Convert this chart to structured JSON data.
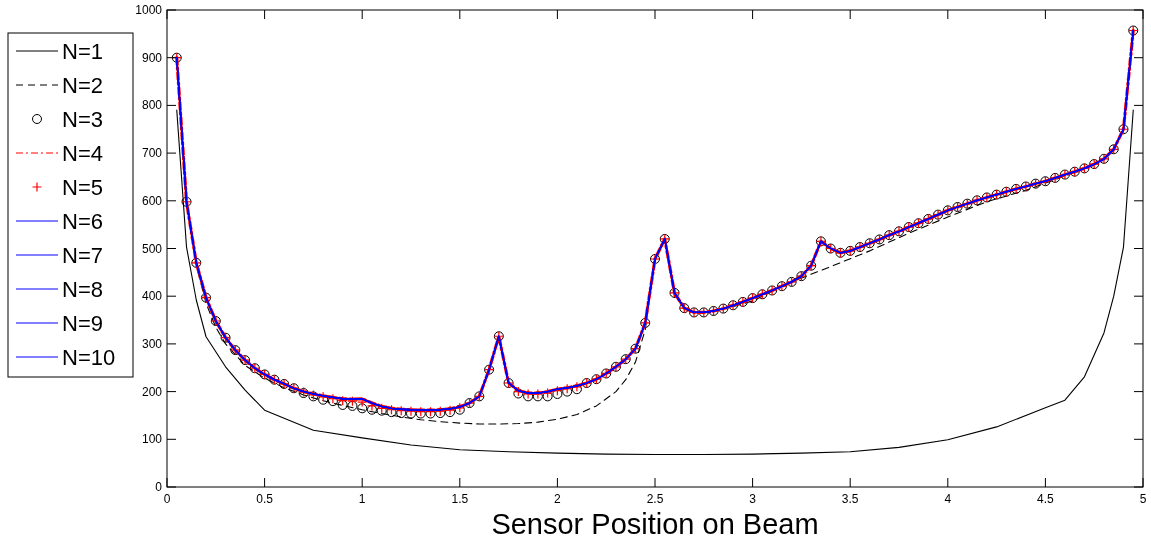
{
  "chart_data": {
    "type": "line",
    "xlabel": "Sensor Position on Beam",
    "xlim": [
      0,
      5
    ],
    "xticks": [
      0,
      0.5,
      1,
      1.5,
      2,
      2.5,
      3,
      3.5,
      4,
      4.5,
      5
    ],
    "ylim": [
      0,
      1000
    ],
    "yticks": [
      0,
      100,
      200,
      300,
      400,
      500,
      600,
      700,
      800,
      900,
      1000
    ],
    "grid": false,
    "legend": "left",
    "x": [
      0.05,
      0.1,
      0.15,
      0.2,
      0.25,
      0.3,
      0.35,
      0.4,
      0.45,
      0.5,
      0.55,
      0.6,
      0.65,
      0.7,
      0.75,
      0.8,
      0.85,
      0.9,
      0.95,
      1,
      1.05,
      1.1,
      1.15,
      1.2,
      1.25,
      1.3,
      1.35,
      1.4,
      1.45,
      1.5,
      1.55,
      1.6,
      1.65,
      1.7,
      1.75,
      1.8,
      1.85,
      1.9,
      1.95,
      2,
      2.05,
      2.1,
      2.15,
      2.2,
      2.25,
      2.3,
      2.35,
      2.4,
      2.45,
      2.5,
      2.55,
      2.6,
      2.65,
      2.7,
      2.75,
      2.8,
      2.85,
      2.9,
      2.95,
      3,
      3.05,
      3.1,
      3.15,
      3.2,
      3.25,
      3.3,
      3.35,
      3.4,
      3.45,
      3.5,
      3.55,
      3.6,
      3.65,
      3.7,
      3.75,
      3.8,
      3.85,
      3.9,
      3.95,
      4,
      4.05,
      4.1,
      4.15,
      4.2,
      4.25,
      4.3,
      4.35,
      4.4,
      4.45,
      4.5,
      4.55,
      4.6,
      4.65,
      4.7,
      4.75,
      4.8,
      4.85,
      4.9,
      4.95
    ],
    "series": [
      {
        "name": "N=1",
        "color": "#000000",
        "line_style": "solid",
        "marker": "none",
        "x": [
          0.05,
          0.1,
          0.15,
          0.2,
          0.3,
          0.4,
          0.5,
          0.75,
          1,
          1.25,
          1.5,
          1.75,
          2,
          2.25,
          2.5,
          2.75,
          3,
          3.25,
          3.5,
          3.75,
          4,
          4.25,
          4.5,
          4.6,
          4.7,
          4.8,
          4.85,
          4.9,
          4.95
        ],
        "values": [
          790,
          503,
          392,
          315,
          252,
          203,
          161,
          119,
          103,
          88,
          78,
          74,
          71,
          69,
          68,
          68,
          69,
          71,
          74,
          83,
          99,
          126,
          166,
          182,
          231,
          323,
          400,
          503,
          790
        ]
      },
      {
        "name": "N=2",
        "color": "#000000",
        "line_style": "dashed",
        "marker": "none",
        "x": [
          0.05,
          0.1,
          0.15,
          0.2,
          0.25,
          0.3,
          0.4,
          0.5,
          0.6,
          0.7,
          0.8,
          0.9,
          1,
          1.1,
          1.2,
          1.3,
          1.4,
          1.5,
          1.6,
          1.7,
          1.8,
          1.9,
          2,
          2.1,
          2.2,
          2.3,
          2.35,
          2.4,
          2.45,
          2.5,
          2.55,
          2.6,
          2.7,
          2.8,
          2.9,
          3,
          3.2,
          3.4,
          3.6,
          3.8,
          4,
          4.2,
          4.4,
          4.6,
          4.7,
          4.8,
          4.85,
          4.9,
          4.95
        ],
        "values": [
          900,
          598,
          465,
          385,
          335,
          300,
          255,
          228,
          208,
          193,
          181,
          171,
          162,
          154,
          147,
          141,
          137,
          134,
          132,
          132,
          133,
          136,
          142,
          152,
          170,
          200,
          225,
          262,
          330,
          478,
          518,
          398,
          365,
          368,
          378,
          390,
          430,
          462,
          495,
          532,
          566,
          598,
          622,
          652,
          668,
          688,
          706,
          750,
          957
        ]
      },
      {
        "name": "N=3",
        "type": "scatter",
        "color": "#000000",
        "marker": "circle",
        "values": [
          900,
          598,
          470,
          397,
          348,
          313,
          287,
          266,
          249,
          236,
          225,
          216,
          207,
          197,
          190,
          183,
          180,
          172,
          170,
          165,
          162,
          160,
          157,
          155,
          154,
          154,
          154,
          155,
          157,
          162,
          176,
          190,
          246,
          316,
          218,
          196,
          190,
          190,
          190,
          195,
          200,
          205,
          218,
          226,
          238,
          252,
          268,
          290,
          344,
          478,
          520,
          407,
          375,
          366,
          366,
          369,
          374,
          381,
          388,
          396,
          404,
          412,
          421,
          430,
          442,
          464,
          515,
          500,
          491,
          495,
          503,
          511,
          519,
          528,
          536,
          545,
          553,
          562,
          571,
          580,
          587,
          594,
          601,
          607,
          613,
          619,
          625,
          630,
          636,
          641,
          648,
          655,
          661,
          668,
          677,
          688,
          708,
          750,
          957
        ]
      },
      {
        "name": "N=4",
        "color": "#ff0000",
        "line_style": "dashdot",
        "marker": "none",
        "values": [
          900,
          598,
          470,
          397,
          348,
          313,
          287,
          266,
          249,
          236,
          225,
          216,
          207,
          200,
          195,
          191,
          188,
          185,
          184,
          185,
          176,
          169,
          165,
          163,
          162,
          161,
          161,
          162,
          164,
          168,
          176,
          190,
          246,
          316,
          218,
          202,
          197,
          197,
          200,
          205,
          208,
          212,
          218,
          226,
          238,
          252,
          268,
          290,
          344,
          478,
          520,
          407,
          375,
          366,
          366,
          369,
          374,
          381,
          388,
          396,
          404,
          412,
          421,
          430,
          442,
          464,
          515,
          500,
          491,
          495,
          503,
          511,
          519,
          528,
          536,
          545,
          553,
          562,
          571,
          580,
          587,
          594,
          601,
          607,
          613,
          619,
          625,
          630,
          636,
          641,
          648,
          655,
          661,
          668,
          677,
          688,
          708,
          750,
          957
        ]
      },
      {
        "name": "N=5",
        "type": "scatter",
        "color": "#ff0000",
        "marker": "cross",
        "values": [
          900,
          598,
          470,
          397,
          348,
          313,
          287,
          266,
          249,
          236,
          225,
          216,
          207,
          199,
          193,
          189,
          185,
          181,
          180,
          178,
          170,
          165,
          162,
          160,
          159,
          158,
          158,
          159,
          161,
          166,
          176,
          190,
          246,
          316,
          218,
          200,
          195,
          195,
          197,
          202,
          206,
          210,
          218,
          226,
          238,
          252,
          268,
          290,
          344,
          478,
          520,
          407,
          375,
          366,
          366,
          369,
          374,
          381,
          388,
          396,
          404,
          412,
          421,
          430,
          442,
          464,
          515,
          500,
          491,
          495,
          503,
          511,
          519,
          528,
          536,
          545,
          553,
          562,
          571,
          580,
          587,
          594,
          601,
          607,
          613,
          619,
          625,
          630,
          636,
          641,
          648,
          655,
          661,
          668,
          677,
          688,
          708,
          750,
          957
        ]
      },
      {
        "name": "N=6",
        "color": "#0000ff",
        "line_style": "solid",
        "marker": "none",
        "values": [
          900,
          598,
          470,
          397,
          348,
          313,
          287,
          266,
          249,
          236,
          225,
          216,
          207,
          200,
          195,
          191,
          188,
          185,
          184,
          185,
          176,
          169,
          165,
          163,
          162,
          161,
          161,
          162,
          164,
          168,
          176,
          190,
          246,
          316,
          218,
          202,
          197,
          197,
          200,
          205,
          208,
          212,
          218,
          226,
          238,
          252,
          268,
          290,
          344,
          478,
          520,
          407,
          375,
          366,
          366,
          369,
          374,
          381,
          388,
          396,
          404,
          412,
          421,
          430,
          442,
          464,
          515,
          500,
          491,
          495,
          503,
          511,
          519,
          528,
          536,
          545,
          553,
          562,
          571,
          580,
          587,
          594,
          601,
          607,
          613,
          619,
          625,
          630,
          636,
          641,
          648,
          655,
          661,
          668,
          677,
          688,
          708,
          750,
          957
        ]
      },
      {
        "name": "N=7",
        "color": "#0000ff",
        "line_style": "solid",
        "marker": "none",
        "values": [
          900,
          598,
          470,
          397,
          348,
          313,
          287,
          266,
          249,
          236,
          225,
          216,
          207,
          200,
          195,
          191,
          188,
          185,
          184,
          185,
          176,
          169,
          165,
          163,
          162,
          161,
          161,
          162,
          164,
          168,
          176,
          190,
          246,
          316,
          218,
          202,
          197,
          197,
          200,
          205,
          208,
          212,
          218,
          226,
          238,
          252,
          268,
          290,
          344,
          478,
          520,
          407,
          375,
          366,
          366,
          369,
          374,
          381,
          388,
          396,
          404,
          412,
          421,
          430,
          442,
          464,
          515,
          500,
          491,
          495,
          503,
          511,
          519,
          528,
          536,
          545,
          553,
          562,
          571,
          580,
          587,
          594,
          601,
          607,
          613,
          619,
          625,
          630,
          636,
          641,
          648,
          655,
          661,
          668,
          677,
          688,
          708,
          750,
          957
        ]
      },
      {
        "name": "N=8",
        "color": "#0000ff",
        "line_style": "solid",
        "marker": "none",
        "values": [
          900,
          598,
          470,
          397,
          348,
          313,
          287,
          266,
          249,
          236,
          225,
          216,
          207,
          200,
          195,
          191,
          188,
          185,
          184,
          185,
          176,
          169,
          165,
          163,
          162,
          161,
          161,
          162,
          164,
          168,
          176,
          190,
          246,
          316,
          218,
          202,
          197,
          197,
          200,
          205,
          208,
          212,
          218,
          226,
          238,
          252,
          268,
          290,
          344,
          478,
          520,
          407,
          375,
          366,
          366,
          369,
          374,
          381,
          388,
          396,
          404,
          412,
          421,
          430,
          442,
          464,
          515,
          500,
          491,
          495,
          503,
          511,
          519,
          528,
          536,
          545,
          553,
          562,
          571,
          580,
          587,
          594,
          601,
          607,
          613,
          619,
          625,
          630,
          636,
          641,
          648,
          655,
          661,
          668,
          677,
          688,
          708,
          750,
          957
        ]
      },
      {
        "name": "N=9",
        "color": "#0000ff",
        "line_style": "solid",
        "marker": "none",
        "values": [
          900,
          598,
          470,
          397,
          348,
          313,
          287,
          266,
          249,
          236,
          225,
          216,
          207,
          200,
          195,
          191,
          188,
          185,
          184,
          185,
          176,
          169,
          165,
          163,
          162,
          161,
          161,
          162,
          164,
          168,
          176,
          190,
          246,
          316,
          218,
          202,
          197,
          197,
          200,
          205,
          208,
          212,
          218,
          226,
          238,
          252,
          268,
          290,
          344,
          478,
          520,
          407,
          375,
          366,
          366,
          369,
          374,
          381,
          388,
          396,
          404,
          412,
          421,
          430,
          442,
          464,
          515,
          500,
          491,
          495,
          503,
          511,
          519,
          528,
          536,
          545,
          553,
          562,
          571,
          580,
          587,
          594,
          601,
          607,
          613,
          619,
          625,
          630,
          636,
          641,
          648,
          655,
          661,
          668,
          677,
          688,
          708,
          750,
          957
        ]
      },
      {
        "name": "N=10",
        "color": "#0000ff",
        "line_style": "solid",
        "marker": "none",
        "values": [
          900,
          598,
          470,
          397,
          348,
          313,
          287,
          266,
          249,
          236,
          225,
          216,
          207,
          200,
          195,
          191,
          188,
          185,
          184,
          185,
          176,
          169,
          165,
          163,
          162,
          161,
          161,
          162,
          164,
          168,
          176,
          190,
          246,
          316,
          218,
          202,
          197,
          197,
          200,
          205,
          208,
          212,
          218,
          226,
          238,
          252,
          268,
          290,
          344,
          478,
          520,
          407,
          375,
          366,
          366,
          369,
          374,
          381,
          388,
          396,
          404,
          412,
          421,
          430,
          442,
          464,
          515,
          500,
          491,
          495,
          503,
          511,
          519,
          528,
          536,
          545,
          553,
          562,
          571,
          580,
          587,
          594,
          601,
          607,
          613,
          619,
          625,
          630,
          636,
          641,
          648,
          655,
          661,
          668,
          677,
          688,
          708,
          750,
          957
        ]
      }
    ]
  }
}
